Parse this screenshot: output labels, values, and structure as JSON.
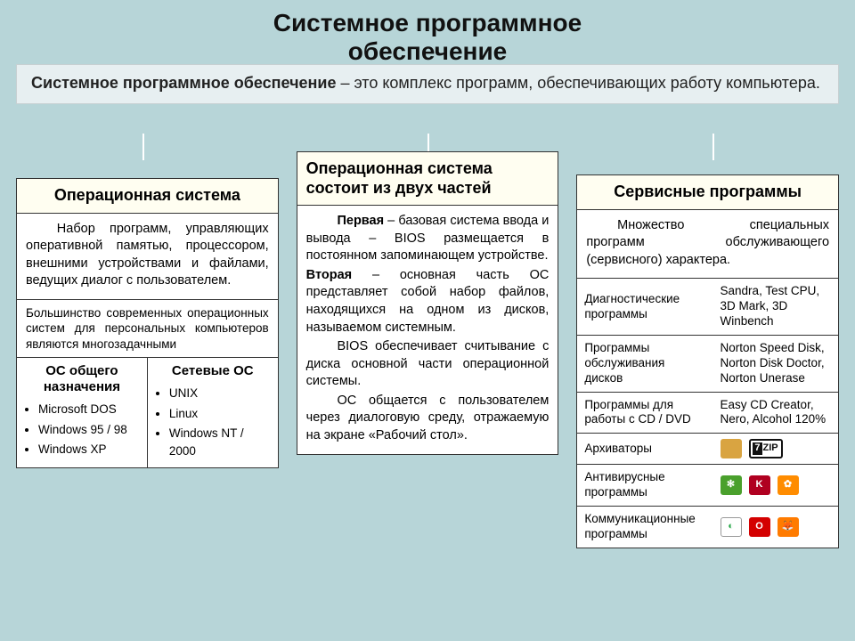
{
  "title_line1": "Системное программное",
  "title_line2": "обеспечение",
  "intro_bold": "Системное программное обеспечение",
  "intro_rest": " – это комплекс программ, обеспечивающих работу компьютера.",
  "col1": {
    "head": "Операционная система",
    "p1": "Набор программ, управляющих оперативной памятью, процессором, внешними устройствами и файлами, ведущих диалог с пользователем.",
    "p2": "Большинство современных операционных систем для персональных компьютеров являются многозадачными",
    "left_h": "ОС общего назначения",
    "right_h": "Сетевые ОС",
    "left_items": [
      "Microsoft DOS",
      "Windows 95 / 98",
      "Windows  XP"
    ],
    "right_items": [
      "UNIX",
      "Linux",
      "Windows NT / 2000"
    ]
  },
  "col2": {
    "head": "Операционная система состоит из двух частей",
    "p1_lead": "Первая",
    "p1": " – базовая система ввода и вывода – BIOS размещается в постоянном запоминающем устройстве.",
    "p2_lead": "Вторая",
    "p2": " – основная часть ОС представляет собой набор файлов, находящихся на одном из дисков, называемом системным.",
    "p3": "BIOS обеспечивает считывание с диска основной части операционной системы.",
    "p4": "ОС общается с пользователем через диалоговую среду, отражаемую на экране «Рабочий стол»."
  },
  "col3": {
    "head": "Сервисные программы",
    "intro": "Множество специальных программ обслуживающего (сервисного) характера.",
    "rows": [
      {
        "k": "Диагностические программы",
        "v": "Sandra, Test CPU, 3D Mark, 3D Winbench"
      },
      {
        "k": "Программы обслуживания дисков",
        "v": "Norton Speed Disk, Norton Disk Doctor, Norton Unerase"
      },
      {
        "k": "Программы для работы с  CD / DVD",
        "v": "Easy CD Creator, Nero, Alcohol 120%"
      },
      {
        "k": "Архиваторы",
        "icons": [
          {
            "bg": "#d9a441",
            "txt": ""
          },
          {
            "bg": "#111",
            "txt": "7",
            "extra": "ZIP"
          }
        ]
      },
      {
        "k": "Антивирусные программы",
        "icons": [
          {
            "bg": "#4aa02c",
            "txt": "✻"
          },
          {
            "bg": "#b00020",
            "txt": "K"
          },
          {
            "bg": "#ff8c00",
            "txt": "✿"
          }
        ]
      },
      {
        "k": "Коммуникационные программы",
        "icons": [
          {
            "bg": "#ffffff",
            "txt": "◐",
            "fg": "#2aa84a",
            "bd": "#999"
          },
          {
            "bg": "#d40000",
            "txt": "O"
          },
          {
            "bg": "#ff7b00",
            "txt": "🦊"
          }
        ]
      }
    ]
  },
  "colors": {
    "page_bg": "#b7d5d8",
    "band_bg": "#e7eff1",
    "panel_bg": "#ffffff",
    "head_bg": "#fffef1",
    "border": "#333333"
  }
}
